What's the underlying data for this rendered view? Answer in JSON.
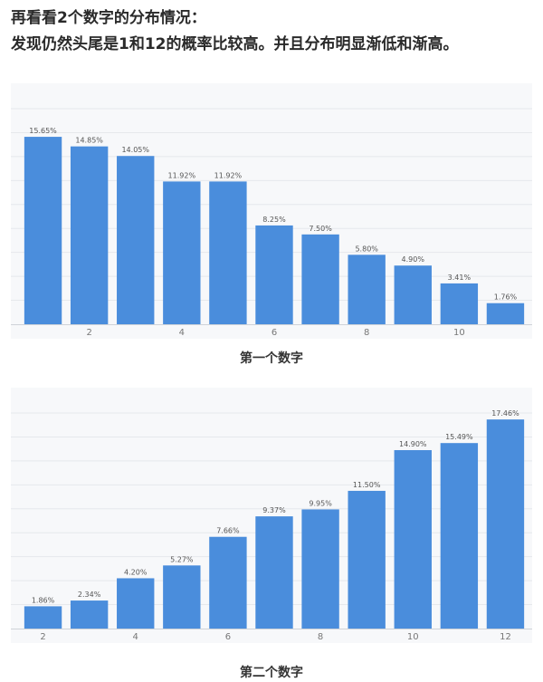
{
  "intro": {
    "line1": "再看看2个数字的分布情况：",
    "line2": "发现仍然头尾是1和12的概率比较高。并且分布明显渐低和渐高。"
  },
  "chart_data": [
    {
      "type": "bar",
      "title": "第一个数字",
      "categories": [
        "1",
        "2",
        "3",
        "4",
        "5",
        "6",
        "7",
        "8",
        "9",
        "10",
        "11"
      ],
      "values": [
        15.65,
        14.85,
        14.05,
        11.92,
        11.92,
        8.25,
        7.5,
        5.8,
        4.9,
        3.41,
        1.76
      ],
      "labels": [
        "15.65%",
        "14.85%",
        "14.05%",
        "11.92%",
        "11.92%",
        "8.25%",
        "7.50%",
        "5.80%",
        "4.90%",
        "3.41%",
        "1.76%"
      ],
      "x_ticks_shown": [
        "2",
        "4",
        "6",
        "8",
        "10"
      ],
      "color": "#4a8ddc",
      "grid": true
    },
    {
      "type": "bar",
      "title": "第二个数字",
      "categories": [
        "2",
        "3",
        "4",
        "5",
        "6",
        "7",
        "8",
        "9",
        "10",
        "11",
        "12"
      ],
      "values": [
        1.86,
        2.34,
        4.2,
        5.27,
        7.66,
        9.37,
        9.95,
        11.5,
        14.9,
        15.49,
        17.46
      ],
      "labels": [
        "1.86%",
        "2.34%",
        "4.20%",
        "5.27%",
        "7.66%",
        "9.37%",
        "9.95%",
        "11.50%",
        "14.90%",
        "15.49%",
        "17.46%"
      ],
      "x_ticks_shown": [
        "2",
        "4",
        "6",
        "8",
        "10",
        "12"
      ],
      "color": "#4a8ddc",
      "grid": true
    }
  ]
}
